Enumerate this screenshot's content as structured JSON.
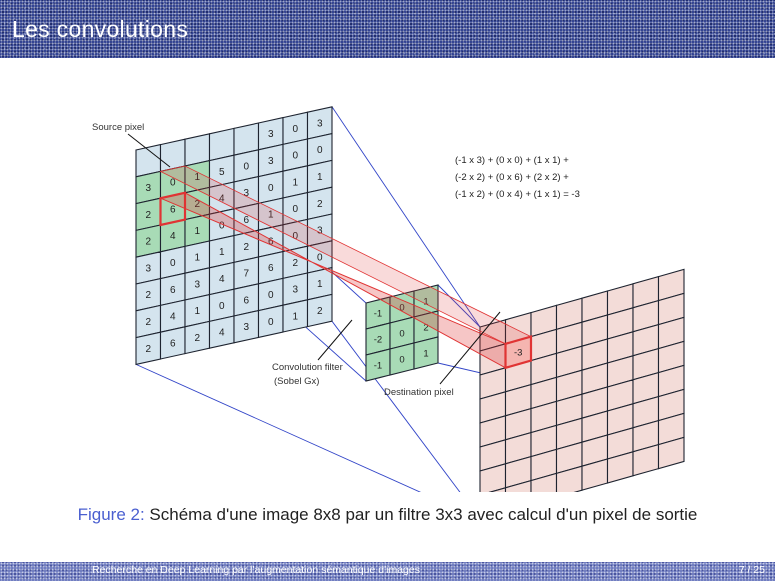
{
  "header": {
    "title": "Les convolutions"
  },
  "diagram": {
    "source_label": "Source pixel",
    "filter_label_line1": "Convolution filter",
    "filter_label_line2": "(Sobel Gx)",
    "destination_label": "Destination pixel",
    "formula_line1": "(-1 x 3) + (0 x 0) + (1 x 1) +",
    "formula_line2": "(-2 x 2) + (0 x 6) + (2 x 2) +",
    "formula_line3": "(-1 x 2) + (0 x 4) + (1 x 1) = -3",
    "source_grid": [
      [
        "",
        "",
        "",
        "",
        "",
        "3",
        "0",
        "3"
      ],
      [
        "3",
        "0",
        "1",
        "5",
        "0",
        "3",
        "0",
        "0"
      ],
      [
        "2",
        "6",
        "2",
        "4",
        "3",
        "0",
        "1",
        "1"
      ],
      [
        "2",
        "4",
        "1",
        "0",
        "6",
        "1",
        "0",
        "2"
      ],
      [
        "3",
        "0",
        "1",
        "1",
        "2",
        "6",
        "0",
        "3"
      ],
      [
        "2",
        "6",
        "3",
        "4",
        "7",
        "6",
        "2",
        "0"
      ],
      [
        "2",
        "4",
        "1",
        "0",
        "6",
        "0",
        "3",
        "1"
      ],
      [
        "2",
        "6",
        "2",
        "4",
        "3",
        "0",
        "1",
        "2"
      ]
    ],
    "filter_grid": [
      [
        "-1",
        "0",
        "1"
      ],
      [
        "-2",
        "0",
        "2"
      ],
      [
        "-1",
        "0",
        "1"
      ]
    ],
    "destination_value": "-3",
    "colors": {
      "source_fill": "#d4e4ee",
      "highlight_fill": "#a8dbb6",
      "dest_fill": "#f3dcd8",
      "beam": "#e03434",
      "guide": "#3346c8"
    }
  },
  "caption": {
    "label": "Figure 2:",
    "text": "Schéma d'une image 8x8 par un filtre 3x3 avec calcul d'un pixel de sortie"
  },
  "footer": {
    "text": "Recherche en Deep Learning par l'augmentation sémantique d'images",
    "page": "7 / 25"
  }
}
